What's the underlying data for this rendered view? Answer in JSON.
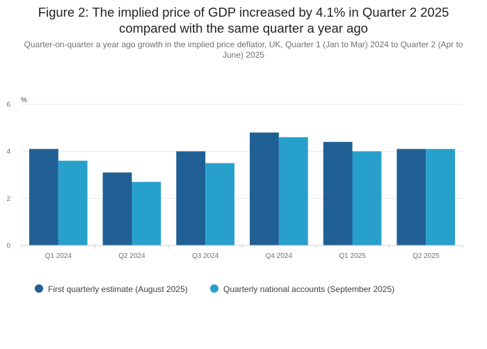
{
  "chart_data": {
    "type": "bar",
    "title": "Figure 2: The implied price of GDP increased by 4.1% in Quarter 2 2025 compared with the same quarter a year ago",
    "subtitle": "Quarter-on-quarter a year ago growth in the implied price deflator, UK, Quarter 1 (Jan to Mar) 2024 to Quarter 2 (Apr to June) 2025",
    "ylabel": "%",
    "xlabel": "",
    "ylim": [
      0,
      6
    ],
    "yticks": [
      "0",
      "2",
      "4",
      "6"
    ],
    "grid": true,
    "legend_position": "bottom-left",
    "categories": [
      "Q1 2024",
      "Q2 2024",
      "Q3 2024",
      "Q4 2024",
      "Q1 2025",
      "Q2 2025"
    ],
    "series": [
      {
        "name": "First quarterly estimate (August 2025)",
        "color": "#206095",
        "values": [
          4.1,
          3.1,
          4.0,
          4.8,
          4.4,
          4.1
        ]
      },
      {
        "name": "Quarterly national accounts (September 2025)",
        "color": "#27a0cc",
        "values": [
          3.6,
          2.7,
          3.5,
          4.6,
          4.0,
          4.1
        ]
      }
    ]
  }
}
